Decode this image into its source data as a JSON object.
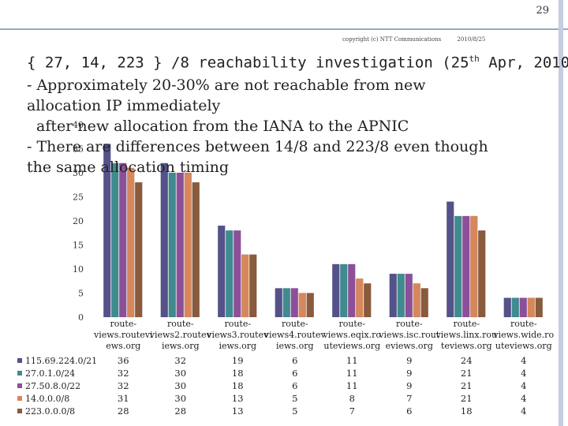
{
  "page_number": "29",
  "copyright": "copyright (c) NTT Communications",
  "date": "2010/8/25",
  "title_prefix": "{ 27, 14, 223 } /8 reachability investigation (25",
  "title_sup": "th",
  "title_suffix": " Apr, 2010)",
  "body_lines": [
    "- Approximately 20-30% are not reachable from new",
    "allocation IP immediately",
    "after new allocation from the IANA to the APNIC",
    "- There are differences between 14/8 and 223/8 even though",
    "the same allocation timing"
  ],
  "colors": {
    "series": [
      "#54528a",
      "#3f8b8f",
      "#8d4f9a",
      "#d7875b",
      "#8a5a3c"
    ],
    "accent_line": "#9aa7c5"
  },
  "chart_data": {
    "type": "bar",
    "ylim": [
      0,
      40
    ],
    "yticks": [
      "0",
      "5",
      "10",
      "15",
      "20",
      "25",
      "30",
      "35",
      "40"
    ],
    "categories": [
      [
        "route-",
        "views.routevi",
        "ews.org"
      ],
      [
        "route-",
        "views2.routev",
        "iews.org"
      ],
      [
        "route-",
        "views3.routev",
        "iews.org"
      ],
      [
        "route-",
        "views4.routev",
        "iews.org"
      ],
      [
        "route-",
        "views.eqix.ro",
        "uteviews.org"
      ],
      [
        "route-",
        "views.isc.rout",
        "eviews.org"
      ],
      [
        "route-",
        "views.linx.rou",
        "teviews.org"
      ],
      [
        "route-",
        "views.wide.ro",
        "uteviews.org"
      ]
    ],
    "series": [
      {
        "name": "115.69.224.0/21",
        "values": [
          36,
          32,
          19,
          6,
          11,
          9,
          24,
          4
        ]
      },
      {
        "name": "27.0.1.0/24",
        "values": [
          32,
          30,
          18,
          6,
          11,
          9,
          21,
          4
        ]
      },
      {
        "name": "27.50.8.0/22",
        "values": [
          32,
          30,
          18,
          6,
          11,
          9,
          21,
          4
        ]
      },
      {
        "name": "14.0.0.0/8",
        "values": [
          31,
          30,
          13,
          5,
          8,
          7,
          21,
          4
        ]
      },
      {
        "name": "223.0.0.0/8",
        "values": [
          28,
          28,
          13,
          5,
          7,
          6,
          18,
          4
        ]
      }
    ]
  }
}
